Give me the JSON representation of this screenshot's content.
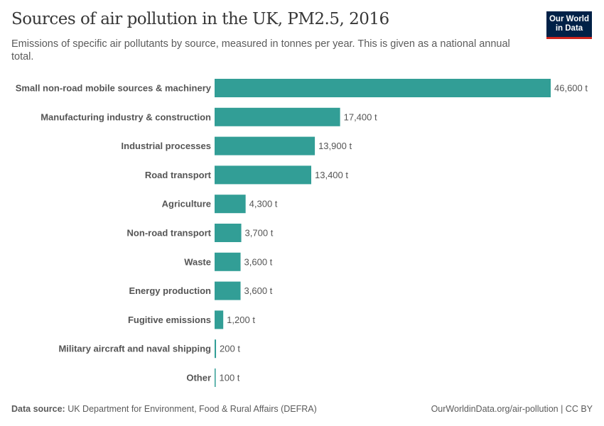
{
  "title": "Sources of air pollution in the UK, PM2.5, 2016",
  "subtitle": "Emissions of specific air pollutants by source, measured in tonnes per year. This is given as a national annual total.",
  "logo": {
    "line1": "Our World",
    "line2": "in Data"
  },
  "footer": {
    "source_label": "Data source:",
    "source": "UK Department for Environment, Food & Rural Affairs (DEFRA)",
    "url": "OurWorldinData.org/air-pollution | CC BY"
  },
  "colors": {
    "bar": "#329e96",
    "logo_bg": "#002147",
    "logo_accent": "#ce261e"
  },
  "chart_data": {
    "type": "bar",
    "orientation": "horizontal",
    "unit": "t",
    "categories": [
      "Small non-road mobile sources & machinery",
      "Manufacturing industry & construction",
      "Industrial processes",
      "Road transport",
      "Agriculture",
      "Non-road transport",
      "Waste",
      "Energy production",
      "Fugitive emissions",
      "Military aircraft and naval shipping",
      "Other"
    ],
    "values": [
      46600,
      17400,
      13900,
      13400,
      4300,
      3700,
      3600,
      3600,
      1200,
      200,
      100
    ],
    "labels": [
      "46,600 t",
      "17,400 t",
      "13,900 t",
      "13,400 t",
      "4,300 t",
      "3,700 t",
      "3,600 t",
      "3,600 t",
      "1,200 t",
      "200 t",
      "100 t"
    ],
    "grid": false
  }
}
